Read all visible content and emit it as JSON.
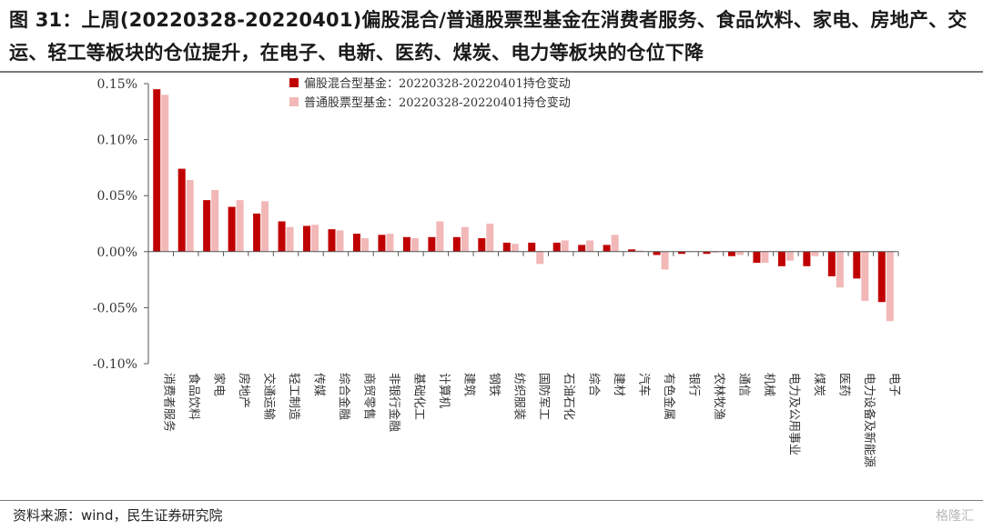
{
  "header": {
    "title": "图 31：上周(20220328-20220401)偏股混合/普通股票型基金在消费者服务、食品饮料、家电、房地产、交运、轻工等板块的仓位提升，在电子、电新、医药、煤炭、电力等板块的仓位下降"
  },
  "footer": {
    "source": "资料来源：wind，民生证券研究院",
    "watermark": "格隆汇"
  },
  "chart_data": {
    "type": "bar",
    "y_tick_labels": [
      "0.15%",
      "0.10%",
      "0.05%",
      "0.00%",
      "-0.05%",
      "-0.10%"
    ],
    "y_ticks": [
      0.15,
      0.1,
      0.05,
      0.0,
      -0.05,
      -0.1
    ],
    "ylim": [
      -0.1,
      0.15
    ],
    "legend_position": "top-center",
    "categories": [
      "消费者服务",
      "食品饮料",
      "家电",
      "房地产",
      "交通运输",
      "轻工制造",
      "传媒",
      "综合金融",
      "商贸零售",
      "非银行金融",
      "基础化工",
      "计算机",
      "建筑",
      "钢铁",
      "纺织服装",
      "国防军工",
      "石油石化",
      "综合",
      "建材",
      "汽车",
      "有色金属",
      "银行",
      "农林牧渔",
      "通信",
      "机械",
      "电力及公用事业",
      "煤炭",
      "医药",
      "电力设备及新能源",
      "电子"
    ],
    "series": [
      {
        "name": "偏股混合型基金：20220328-20220401持仓变动",
        "color": "#c00000",
        "values": [
          0.145,
          0.074,
          0.046,
          0.04,
          0.034,
          0.027,
          0.023,
          0.02,
          0.016,
          0.015,
          0.013,
          0.013,
          0.013,
          0.012,
          0.008,
          0.008,
          0.008,
          0.006,
          0.006,
          0.002,
          -0.003,
          -0.002,
          -0.002,
          -0.004,
          -0.01,
          -0.013,
          -0.013,
          -0.022,
          -0.024,
          -0.045
        ]
      },
      {
        "name": "普通股票型基金：20220328-20220401持仓变动",
        "color": "#f2b8b8",
        "values": [
          0.14,
          0.064,
          0.055,
          0.046,
          0.045,
          0.022,
          0.024,
          0.019,
          0.012,
          0.016,
          0.012,
          0.027,
          0.022,
          0.025,
          0.007,
          -0.011,
          0.01,
          0.01,
          0.015,
          0.001,
          -0.016,
          0.0,
          -0.001,
          -0.003,
          -0.01,
          -0.008,
          -0.004,
          -0.032,
          -0.044,
          -0.062
        ]
      }
    ]
  }
}
